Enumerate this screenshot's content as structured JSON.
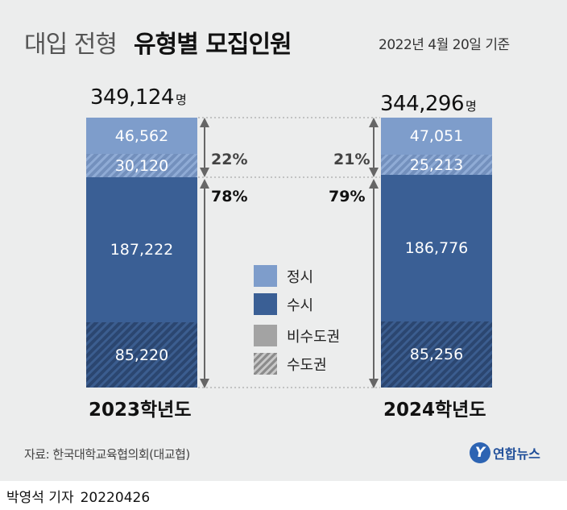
{
  "header": {
    "title_light": "대입 전형",
    "title_bold": "유형별 모집인원",
    "date_note": "2022년 4월 20일 기준"
  },
  "colors": {
    "jeongsi": "#7e9dcb",
    "susi": "#3a5f95",
    "non_capital": "#a3a3a3",
    "capital_hatch": "#2b4670",
    "arrow": "#666666",
    "background": "#eceded"
  },
  "chart_data": {
    "type": "bar",
    "stacked": true,
    "unit": "명",
    "categories": [
      "2023학년도",
      "2024학년도"
    ],
    "totals": [
      "349,124",
      "344,296"
    ],
    "totals_value": [
      349124,
      344296
    ],
    "series": [
      {
        "name": "정시",
        "group": "비수도권",
        "values": [
          46562,
          47051
        ],
        "labels": [
          "46,562",
          "47,051"
        ]
      },
      {
        "name": "정시",
        "group": "수도권",
        "values": [
          30120,
          25213
        ],
        "labels": [
          "30,120",
          "25,213"
        ]
      },
      {
        "name": "수시",
        "group": "비수도권",
        "values": [
          187222,
          186776
        ],
        "labels": [
          "187,222",
          "186,776"
        ]
      },
      {
        "name": "수시",
        "group": "수도권",
        "values": [
          85220,
          85256
        ],
        "labels": [
          "85,220",
          "85,256"
        ]
      }
    ],
    "shares": {
      "jeongsi": [
        "22%",
        "21%"
      ],
      "susi": [
        "78%",
        "79%"
      ]
    },
    "legend": [
      "정시",
      "수시",
      "비수도권",
      "수도권"
    ]
  },
  "footer": {
    "source": "자료: 한국대학교육협의회(대교협)",
    "logo_mark": "Y",
    "logo_text": "연합뉴스",
    "byline_name": "박영석 기자",
    "byline_date": "20220426"
  }
}
